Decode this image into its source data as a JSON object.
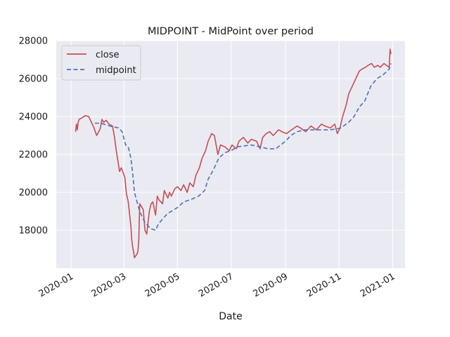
{
  "chart_data": {
    "type": "line",
    "title": "MIDPOINT - MidPoint over period",
    "xlabel": "Date",
    "ylabel": "",
    "xlim": [
      "2019-12-15",
      "2021-01-15"
    ],
    "ylim": [
      16000,
      28000
    ],
    "grid": true,
    "legend_position": "top-left",
    "xticks": [
      "2020-01-01",
      "2020-03-01",
      "2020-05-01",
      "2020-07-01",
      "2020-09-01",
      "2020-11-01",
      "2021-01-01"
    ],
    "xtick_labels": [
      "2020-01",
      "2020-03",
      "2020-05",
      "2020-07",
      "2020-09",
      "2020-11",
      "2021-01"
    ],
    "yticks": [
      18000,
      20000,
      22000,
      24000,
      26000,
      28000
    ],
    "ytick_labels": [
      "18000",
      "20000",
      "22000",
      "24000",
      "26000",
      "28000"
    ],
    "colors": {
      "plot_background": "#eaeaf2",
      "grid": "#ffffff",
      "close": "#c44e52",
      "midpoint": "#4c72b0"
    },
    "series": [
      {
        "name": "close",
        "style": "solid",
        "x": [
          "2020-01-06",
          "2020-01-07",
          "2020-01-08",
          "2020-01-09",
          "2020-01-10",
          "2020-01-14",
          "2020-01-17",
          "2020-01-21",
          "2020-01-24",
          "2020-01-27",
          "2020-01-30",
          "2020-02-03",
          "2020-02-05",
          "2020-02-07",
          "2020-02-10",
          "2020-02-13",
          "2020-02-17",
          "2020-02-19",
          "2020-02-21",
          "2020-02-25",
          "2020-02-27",
          "2020-03-02",
          "2020-03-04",
          "2020-03-05",
          "2020-03-06",
          "2020-03-09",
          "2020-03-10",
          "2020-03-11",
          "2020-03-12",
          "2020-03-13",
          "2020-03-16",
          "2020-03-17",
          "2020-03-18",
          "2020-03-19",
          "2020-03-23",
          "2020-03-25",
          "2020-03-27",
          "2020-03-30",
          "2020-04-01",
          "2020-04-03",
          "2020-04-06",
          "2020-04-08",
          "2020-04-10",
          "2020-04-14",
          "2020-04-16",
          "2020-04-20",
          "2020-04-22",
          "2020-04-24",
          "2020-04-28",
          "2020-05-01",
          "2020-05-05",
          "2020-05-08",
          "2020-05-12",
          "2020-05-15",
          "2020-05-19",
          "2020-05-22",
          "2020-05-26",
          "2020-05-29",
          "2020-06-02",
          "2020-06-05",
          "2020-06-09",
          "2020-06-12",
          "2020-06-16",
          "2020-06-19",
          "2020-06-24",
          "2020-06-29",
          "2020-07-02",
          "2020-07-07",
          "2020-07-10",
          "2020-07-15",
          "2020-07-20",
          "2020-07-24",
          "2020-07-30",
          "2020-08-03",
          "2020-08-06",
          "2020-08-10",
          "2020-08-14",
          "2020-08-18",
          "2020-08-24",
          "2020-08-28",
          "2020-09-02",
          "2020-09-08",
          "2020-09-14",
          "2020-09-18",
          "2020-09-24",
          "2020-09-30",
          "2020-10-06",
          "2020-10-12",
          "2020-10-16",
          "2020-10-22",
          "2020-10-27",
          "2020-10-30",
          "2020-11-02",
          "2020-11-05",
          "2020-11-09",
          "2020-11-12",
          "2020-11-16",
          "2020-11-19",
          "2020-11-24",
          "2020-11-27",
          "2020-12-01",
          "2020-12-04",
          "2020-12-08",
          "2020-12-11",
          "2020-12-15",
          "2020-12-18",
          "2020-12-22",
          "2020-12-25",
          "2020-12-28",
          "2020-12-29",
          "2020-12-30"
        ],
        "values": [
          23200,
          23600,
          23300,
          23700,
          23850,
          23950,
          24050,
          24000,
          23700,
          23400,
          23000,
          23350,
          23850,
          23700,
          23800,
          23600,
          23500,
          23000,
          22300,
          21100,
          21300,
          20800,
          19900,
          19700,
          19500,
          18200,
          17500,
          17100,
          16900,
          16550,
          16750,
          16900,
          17500,
          19400,
          19100,
          18000,
          17800,
          19000,
          19400,
          19500,
          18800,
          19800,
          19600,
          19400,
          20100,
          19700,
          20000,
          19800,
          20200,
          20300,
          20100,
          20400,
          20000,
          20500,
          20300,
          20900,
          21300,
          21800,
          22200,
          22700,
          23100,
          23000,
          22000,
          22500,
          22400,
          22200,
          22500,
          22300,
          22700,
          22900,
          22600,
          22800,
          22700,
          22300,
          22900,
          23100,
          23200,
          23000,
          23300,
          23200,
          23100,
          23300,
          23500,
          23400,
          23200,
          23500,
          23300,
          23600,
          23500,
          23400,
          23600,
          23100,
          23400,
          24000,
          24600,
          25200,
          25600,
          25900,
          26400,
          26500,
          26600,
          26700,
          26800,
          26600,
          26700,
          26600,
          26800,
          26700,
          26600,
          27550,
          27300
        ]
      },
      {
        "name": "midpoint",
        "style": "dashed",
        "x": [
          "2020-01-28",
          "2020-02-04",
          "2020-02-14",
          "2020-02-24",
          "2020-02-28",
          "2020-03-03",
          "2020-03-06",
          "2020-03-09",
          "2020-03-11",
          "2020-03-13",
          "2020-03-16",
          "2020-03-19",
          "2020-03-24",
          "2020-03-31",
          "2020-04-06",
          "2020-04-09",
          "2020-04-14",
          "2020-04-20",
          "2020-04-24",
          "2020-05-01",
          "2020-05-08",
          "2020-05-15",
          "2020-05-20",
          "2020-05-25",
          "2020-06-01",
          "2020-06-05",
          "2020-06-11",
          "2020-06-17",
          "2020-06-24",
          "2020-07-01",
          "2020-07-08",
          "2020-07-16",
          "2020-07-24",
          "2020-08-03",
          "2020-08-12",
          "2020-08-21",
          "2020-09-01",
          "2020-09-07",
          "2020-09-14",
          "2020-09-23",
          "2020-10-01",
          "2020-10-12",
          "2020-10-22",
          "2020-10-29",
          "2020-11-03",
          "2020-11-06",
          "2020-11-12",
          "2020-11-18",
          "2020-11-24",
          "2020-11-30",
          "2020-12-07",
          "2020-12-14",
          "2020-12-21",
          "2020-12-28",
          "2020-12-30"
        ],
        "values": [
          23650,
          23650,
          23500,
          23400,
          23200,
          22500,
          22400,
          21800,
          21000,
          20000,
          19500,
          19000,
          18500,
          18100,
          18000,
          18300,
          18600,
          18900,
          19000,
          19200,
          19500,
          19600,
          19700,
          19800,
          20100,
          20700,
          21200,
          21800,
          22100,
          22200,
          22400,
          22450,
          22500,
          22400,
          22300,
          22300,
          22700,
          23000,
          23200,
          23300,
          23300,
          23300,
          23300,
          23350,
          23400,
          23500,
          23700,
          24000,
          24500,
          24800,
          25600,
          26000,
          26200,
          26500,
          26800
        ]
      }
    ]
  }
}
